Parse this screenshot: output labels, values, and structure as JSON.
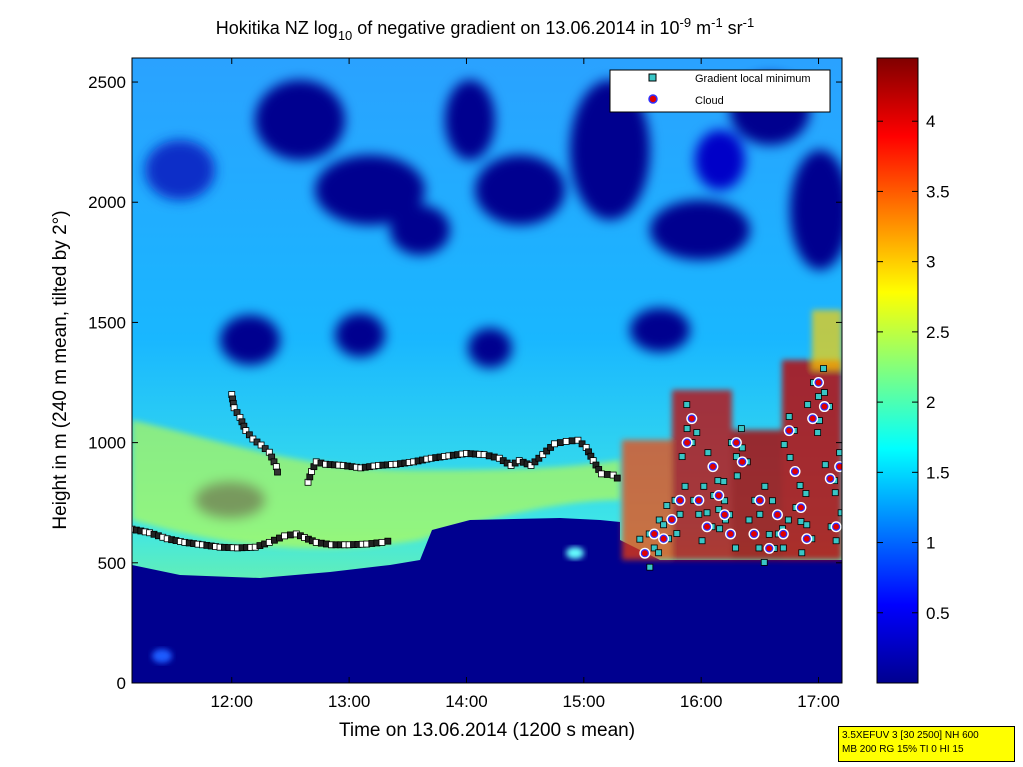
{
  "chart_data": {
    "type": "heatmap",
    "title": {
      "prefix": "Hokitika NZ log",
      "log_sub": "10",
      "middle": " of negative gradient on 13.06.2014 in 10",
      "exp1": "-9",
      "unit1": " m",
      "exp2": "-1",
      "unit2": " sr",
      "exp3": "-1"
    },
    "xlabel": "Time on 13.06.2014 (1200 s mean)",
    "ylabel": "Height in m (240 m mean, tilted by 2°)",
    "xlim_hours": [
      11.15,
      17.2
    ],
    "ylim": [
      0,
      2600
    ],
    "x_ticks": [
      {
        "v": 12,
        "label": "12:00"
      },
      {
        "v": 13,
        "label": "13:00"
      },
      {
        "v": 14,
        "label": "14:00"
      },
      {
        "v": 15,
        "label": "15:00"
      },
      {
        "v": 16,
        "label": "16:00"
      },
      {
        "v": 17,
        "label": "17:00"
      }
    ],
    "y_ticks": [
      {
        "v": 0,
        "label": "0"
      },
      {
        "v": 500,
        "label": "500"
      },
      {
        "v": 1000,
        "label": "1000"
      },
      {
        "v": 1500,
        "label": "1500"
      },
      {
        "v": 2000,
        "label": "2000"
      },
      {
        "v": 2500,
        "label": "2500"
      }
    ],
    "colorbar": {
      "colormap": "jet",
      "clim": [
        0,
        4.45
      ],
      "ticks": [
        {
          "v": 0.5,
          "label": "0.5"
        },
        {
          "v": 1,
          "label": "1"
        },
        {
          "v": 1.5,
          "label": "1.5"
        },
        {
          "v": 2,
          "label": "2"
        },
        {
          "v": 2.5,
          "label": "2.5"
        },
        {
          "v": 3,
          "label": "3"
        },
        {
          "v": 3.5,
          "label": "3.5"
        },
        {
          "v": 4,
          "label": "4"
        }
      ]
    },
    "legend": {
      "placement": "top-right",
      "entries": [
        {
          "label": "Gradient local minimum",
          "marker": "square",
          "color": "#39c6c6"
        },
        {
          "label": "Cloud",
          "marker": "circle",
          "color": "#e00000",
          "edge": "#3030ff"
        }
      ]
    },
    "series": [
      {
        "name": "Gradient local minimum",
        "marker": "square",
        "segments": [
          [
            [
              11.15,
              640
            ],
            [
              11.3,
              625
            ],
            [
              11.45,
              600
            ],
            [
              11.6,
              585
            ],
            [
              11.75,
              575
            ],
            [
              11.9,
              565
            ],
            [
              12.05,
              562
            ],
            [
              12.2,
              565
            ],
            [
              12.32,
              585
            ],
            [
              12.45,
              612
            ],
            [
              12.55,
              620
            ],
            [
              12.62,
              605
            ],
            [
              12.72,
              585
            ],
            [
              12.85,
              575
            ],
            [
              13.0,
              575
            ],
            [
              13.15,
              578
            ],
            [
              13.28,
              585
            ],
            [
              13.38,
              595
            ]
          ],
          [
            [
              12.0,
              1200
            ],
            [
              12.02,
              1145
            ],
            [
              12.07,
              1105
            ],
            [
              12.12,
              1050
            ],
            [
              12.18,
              1015
            ],
            [
              12.25,
              990
            ],
            [
              12.32,
              960
            ],
            [
              12.38,
              900
            ],
            [
              12.4,
              855
            ]
          ],
          [
            [
              12.65,
              835
            ],
            [
              12.68,
              880
            ],
            [
              12.72,
              920
            ],
            [
              12.8,
              910
            ],
            [
              12.95,
              905
            ],
            [
              13.1,
              895
            ],
            [
              13.25,
              905
            ],
            [
              13.4,
              910
            ],
            [
              13.55,
              920
            ],
            [
              13.7,
              935
            ],
            [
              13.85,
              945
            ],
            [
              14.0,
              955
            ],
            [
              14.15,
              950
            ],
            [
              14.28,
              935
            ],
            [
              14.38,
              905
            ],
            [
              14.45,
              925
            ],
            [
              14.55,
              905
            ],
            [
              14.65,
              950
            ],
            [
              14.75,
              995
            ],
            [
              14.85,
              1005
            ],
            [
              14.95,
              1010
            ],
            [
              15.02,
              980
            ],
            [
              15.08,
              925
            ],
            [
              15.15,
              870
            ],
            [
              15.25,
              865
            ],
            [
              15.32,
              840
            ]
          ]
        ]
      },
      {
        "name": "Cloud",
        "marker": "circle",
        "points": [
          [
            15.52,
            540
          ],
          [
            15.6,
            620
          ],
          [
            15.68,
            600
          ],
          [
            15.75,
            680
          ],
          [
            15.82,
            760
          ],
          [
            15.88,
            1000
          ],
          [
            15.92,
            1100
          ],
          [
            15.98,
            760
          ],
          [
            16.05,
            650
          ],
          [
            16.1,
            900
          ],
          [
            16.15,
            780
          ],
          [
            16.2,
            700
          ],
          [
            16.25,
            620
          ],
          [
            16.3,
            1000
          ],
          [
            16.35,
            920
          ],
          [
            16.45,
            620
          ],
          [
            16.5,
            760
          ],
          [
            16.58,
            560
          ],
          [
            16.65,
            700
          ],
          [
            16.7,
            620
          ],
          [
            16.75,
            1050
          ],
          [
            16.8,
            880
          ],
          [
            16.85,
            730
          ],
          [
            16.9,
            600
          ],
          [
            16.95,
            1100
          ],
          [
            17.0,
            1250
          ],
          [
            17.05,
            1150
          ],
          [
            17.1,
            850
          ],
          [
            17.15,
            650
          ],
          [
            17.18,
            900
          ]
        ]
      }
    ]
  },
  "info_box": {
    "line1": "3.5XEFUV 3 [30 2500] NH 600",
    "line2": "MB 200 RG 15% TI 0 HI 15"
  }
}
